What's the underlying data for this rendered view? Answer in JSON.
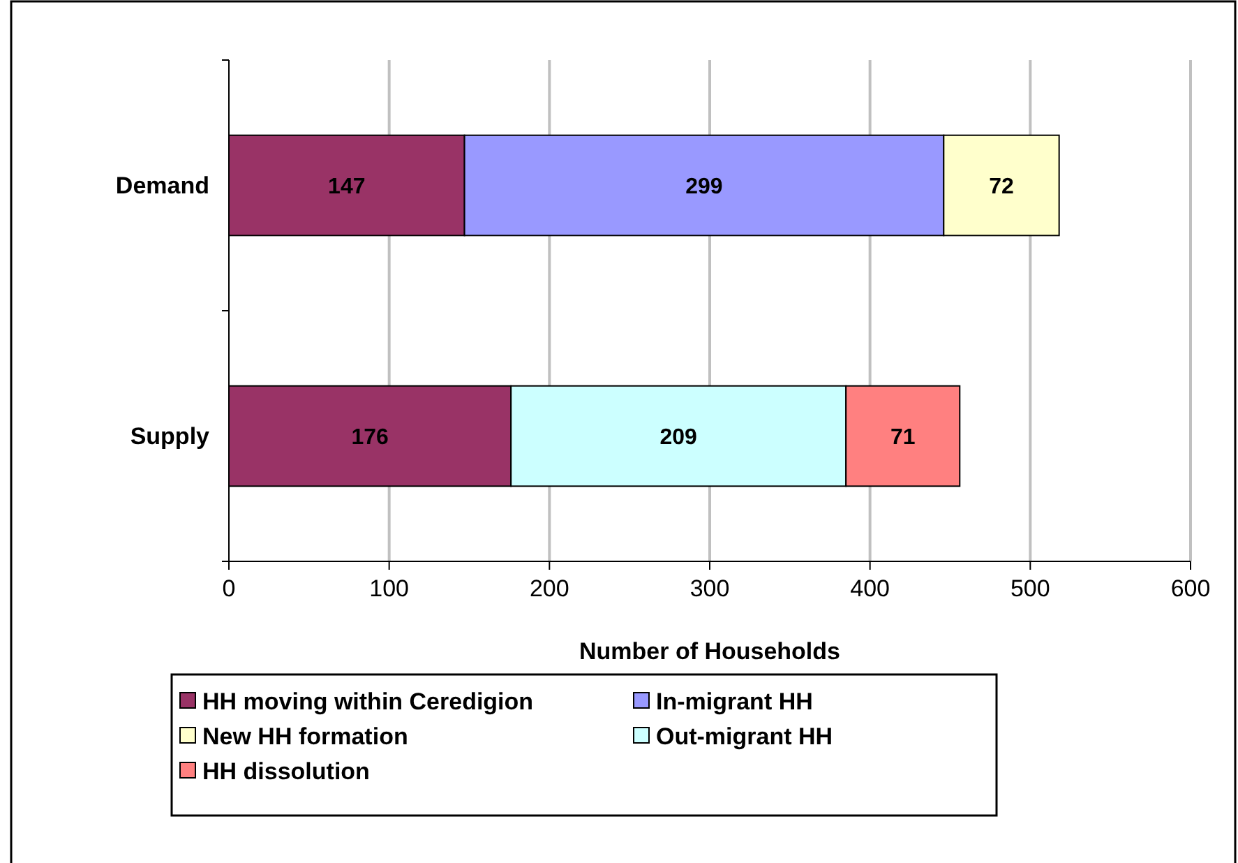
{
  "chart_data": {
    "type": "bar",
    "orientation": "horizontal",
    "stacked": true,
    "categories": [
      "Demand",
      "Supply"
    ],
    "series": [
      {
        "name": "HH moving within Ceredigion",
        "color": "#993366",
        "values": [
          147,
          176
        ]
      },
      {
        "name": "In-migrant HH",
        "color": "#9999ff",
        "values": [
          299,
          null
        ]
      },
      {
        "name": "New HH formation",
        "color": "#ffffcc",
        "values": [
          72,
          null
        ]
      },
      {
        "name": "Out-migrant HH",
        "color": "#ccffff",
        "values": [
          null,
          209
        ]
      },
      {
        "name": "HH dissolution",
        "color": "#ff8080",
        "values": [
          null,
          71
        ]
      }
    ],
    "xlim": [
      0,
      600
    ],
    "xticks": [
      0,
      100,
      200,
      300,
      400,
      500,
      600
    ],
    "xlabel": "Number of Households",
    "grid": "x",
    "legend": "bottom",
    "data_labels": true
  }
}
